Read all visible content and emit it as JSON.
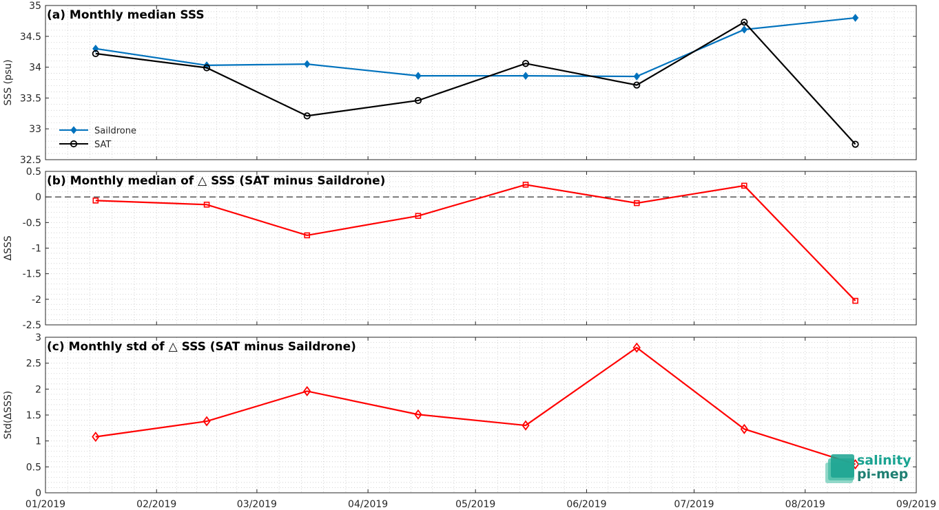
{
  "x_tick_labels": [
    "01/2019",
    "02/2019",
    "03/2019",
    "04/2019",
    "05/2019",
    "06/2019",
    "07/2019",
    "08/2019",
    "09/2019"
  ],
  "logo": {
    "line1": "salinity",
    "line2": "pi-mep",
    "colors": [
      "#1aa391",
      "#4cc0a8",
      "#7fd1c0"
    ]
  },
  "chart_data": [
    {
      "type": "line",
      "title": "(a) Monthly median SSS",
      "xlabel": "",
      "ylabel": "SSS (psu)",
      "ylim": [
        32.5,
        35
      ],
      "yticks": [
        32.5,
        33,
        33.5,
        34,
        34.5,
        35
      ],
      "ytick_labels": [
        "32.5",
        "33",
        "33.5",
        "34",
        "34.5",
        "35"
      ],
      "xlim": [
        "2019-01-01",
        "2019-09-01"
      ],
      "grid": "minor-dotted",
      "legend_position": "lower-left",
      "x": [
        "2019-01-15",
        "2019-02-15",
        "2019-03-15",
        "2019-04-15",
        "2019-05-15",
        "2019-06-15",
        "2019-07-15",
        "2019-08-15"
      ],
      "series": [
        {
          "name": "Saildrone",
          "color": "#0072bd",
          "marker": "filled-diamond",
          "values": [
            34.3,
            34.03,
            34.05,
            33.86,
            33.86,
            33.85,
            34.61,
            34.8
          ]
        },
        {
          "name": "SAT",
          "color": "#000000",
          "marker": "circle",
          "values": [
            34.22,
            33.99,
            33.21,
            33.46,
            34.06,
            33.71,
            34.73,
            32.75
          ]
        }
      ]
    },
    {
      "type": "line",
      "title": "(b) Monthly median of △ SSS (SAT minus Saildrone)",
      "xlabel": "",
      "ylabel": "ΔSSS",
      "ylim": [
        -2.5,
        0.5
      ],
      "yticks": [
        -2.5,
        -2,
        -1.5,
        -1,
        -0.5,
        0,
        0.5
      ],
      "ytick_labels": [
        "-2.5",
        "-2",
        "-1.5",
        "-1",
        "-0.5",
        "0",
        "0.5"
      ],
      "xlim": [
        "2019-01-01",
        "2019-09-01"
      ],
      "grid": "minor-dotted",
      "reference_line": {
        "y": 0,
        "style": "dashed"
      },
      "x": [
        "2019-01-15",
        "2019-02-15",
        "2019-03-15",
        "2019-04-15",
        "2019-05-15",
        "2019-06-15",
        "2019-07-15",
        "2019-08-15"
      ],
      "series": [
        {
          "color": "#ff0000",
          "marker": "square",
          "values": [
            -0.07,
            -0.15,
            -0.75,
            -0.37,
            0.24,
            -0.12,
            0.22,
            -2.03
          ]
        }
      ]
    },
    {
      "type": "line",
      "title": "(c) Monthly std of △ SSS (SAT minus Saildrone)",
      "xlabel": "",
      "ylabel": "Std(ΔSSS)",
      "ylim": [
        0,
        3
      ],
      "yticks": [
        0,
        0.5,
        1,
        1.5,
        2,
        2.5,
        3
      ],
      "ytick_labels": [
        "0",
        "0.5",
        "1",
        "1.5",
        "2",
        "2.5",
        "3"
      ],
      "xlim": [
        "2019-01-01",
        "2019-09-01"
      ],
      "grid": "minor-dotted",
      "x": [
        "2019-01-15",
        "2019-02-15",
        "2019-03-15",
        "2019-04-15",
        "2019-05-15",
        "2019-06-15",
        "2019-07-15",
        "2019-08-15"
      ],
      "series": [
        {
          "color": "#ff0000",
          "marker": "diamond",
          "values": [
            1.08,
            1.38,
            1.96,
            1.51,
            1.3,
            2.8,
            1.23,
            0.55
          ]
        }
      ]
    }
  ]
}
